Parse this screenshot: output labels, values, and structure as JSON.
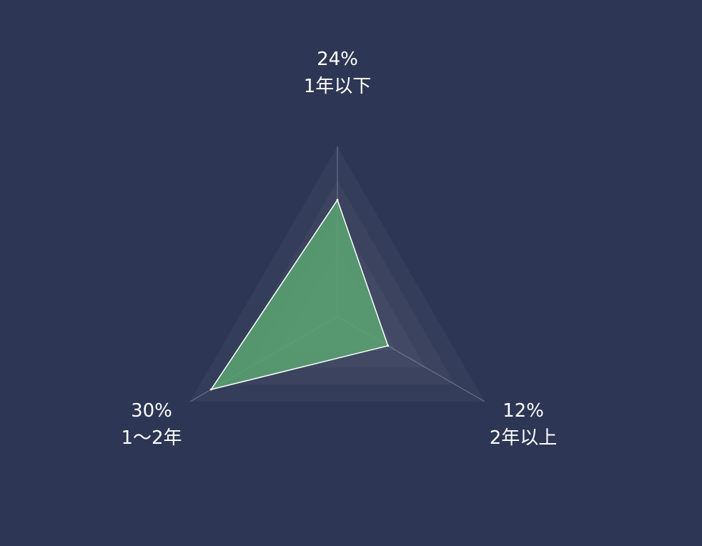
{
  "chart_data": {
    "type": "radar",
    "title": "",
    "axis_max": 35,
    "axes": [
      {
        "name": "1年以下",
        "value": 24,
        "value_label": "24%"
      },
      {
        "name": "2年以上",
        "value": 12,
        "value_label": "12%"
      },
      {
        "name": "1～2年",
        "value": 30,
        "value_label": "30%"
      }
    ],
    "split_rings": 5,
    "colors": {
      "background": "#2d3654",
      "series_fill": "#5aa572",
      "series_line": "#ffffff",
      "ring_fill": "#ffffff",
      "axis_line": "#8b93ab"
    }
  }
}
